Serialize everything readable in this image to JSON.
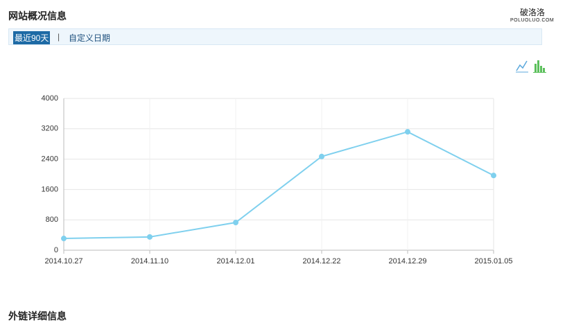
{
  "header": {
    "title": "网站概况信息",
    "tabs": [
      "最近90天",
      "自定义日期"
    ],
    "separator": "|"
  },
  "watermark": {
    "name": "破洛洛",
    "site": "POLUOLUO.COM"
  },
  "next_section": "外链详细信息",
  "chart_data": {
    "type": "line",
    "categories": [
      "2014.10.27",
      "2014.11.10",
      "2014.12.01",
      "2014.12.22",
      "2014.12.29",
      "2015.01.05"
    ],
    "series": [
      {
        "color": "#7fd0ee",
        "values": [
          310,
          350,
          730,
          2470,
          3120,
          1970
        ]
      }
    ],
    "ylim": [
      0,
      4000
    ],
    "yticks": [
      0,
      800,
      1600,
      2400,
      3200,
      4000
    ],
    "grid": true
  }
}
